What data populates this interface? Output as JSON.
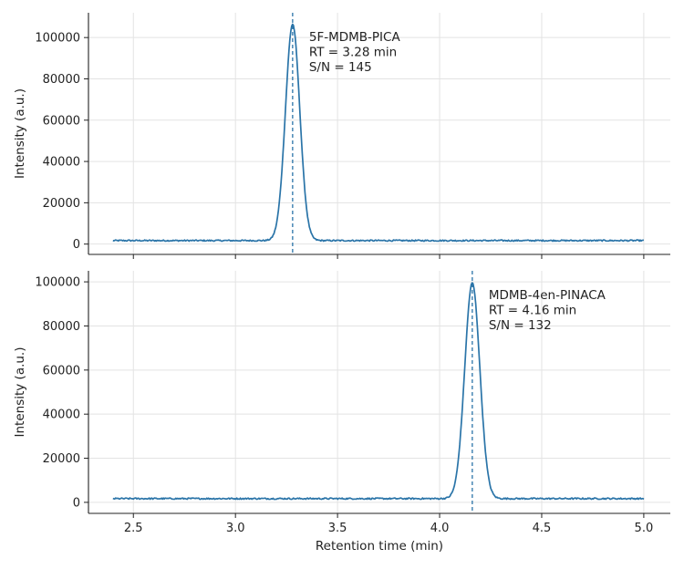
{
  "chart_data": {
    "type": "line",
    "shared_x": true,
    "xlabel": "Retention time (min)",
    "xlim": [
      2.28,
      5.13
    ],
    "xticks": [
      2.5,
      3.0,
      3.5,
      4.0,
      4.5,
      5.0
    ],
    "x_range": [
      2.4,
      5.0
    ],
    "grid": true,
    "color": "#2a74a8",
    "panels": [
      {
        "ylabel": "Intensity (a.u.)",
        "ylim": [
          -5000,
          112000
        ],
        "yticks": [
          0,
          20000,
          40000,
          60000,
          80000,
          100000
        ],
        "baseline": 1700,
        "peak": {
          "rt": 3.28,
          "height": 106500,
          "sigma": 0.035
        },
        "annotation": [
          "5F-MDMB-PICA",
          "RT = 3.28 min",
          "S/N = 145"
        ]
      },
      {
        "ylabel": "Intensity (a.u.)",
        "ylim": [
          -5000,
          105000
        ],
        "yticks": [
          0,
          20000,
          40000,
          60000,
          80000,
          100000
        ],
        "baseline": 1700,
        "peak": {
          "rt": 4.16,
          "height": 99500,
          "sigma": 0.037
        },
        "annotation": [
          "MDMB-4en-PINACA",
          "RT = 4.16 min",
          "S/N = 132"
        ]
      }
    ]
  }
}
